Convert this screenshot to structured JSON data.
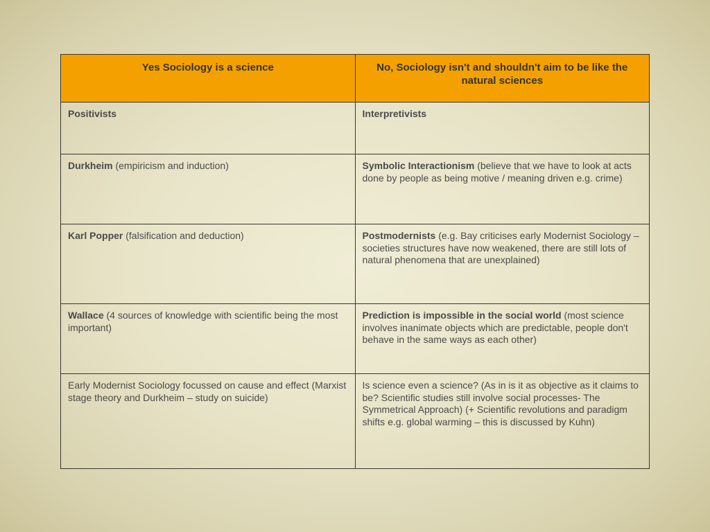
{
  "table": {
    "header_bg": "#f4a100",
    "border_color": "#39362f",
    "background_gradient": {
      "center": "#f0edd6",
      "mid": "#e8e4c8",
      "outer": "#d9d3b0",
      "edge": "#cbc49a"
    },
    "font_family": "Arial",
    "header_fontsize_pt": 11,
    "body_fontsize_pt": 10,
    "columns": [
      {
        "label": "Yes Sociology is a science",
        "width_pct": 50
      },
      {
        "label": "No, Sociology isn't and shouldn't aim to be like the natural sciences",
        "width_pct": 50
      }
    ],
    "rows": [
      {
        "left": {
          "bold": "Positivists",
          "rest": ""
        },
        "right": {
          "bold": "Interpretivists",
          "rest": ""
        }
      },
      {
        "left": {
          "bold": "Durkheim",
          "rest": " (empiricism and induction)"
        },
        "right": {
          "bold": "Symbolic Interactionism",
          "rest": " (believe that we have to look at acts done by people as being motive / meaning driven e.g. crime)"
        }
      },
      {
        "left": {
          "bold": "Karl Popper",
          "rest": " (falsification and deduction)"
        },
        "right": {
          "bold": "Postmodernists",
          "rest": " (e.g. Bay criticises early Modernist Sociology – societies structures have now weakened, there are still lots of natural phenomena that are unexplained)"
        }
      },
      {
        "left": {
          "bold": "Wallace",
          "rest": " (4 sources of knowledge with scientific being the most important)"
        },
        "right": {
          "bold": "Prediction is impossible in the social world",
          "rest": " (most science involves inanimate objects which are predictable, people don't behave in the same ways as each other)"
        }
      },
      {
        "left": {
          "bold": "",
          "rest": "Early Modernist Sociology focussed on cause and effect (Marxist stage theory and Durkheim – study on suicide)"
        },
        "right": {
          "bold": "",
          "rest": "Is science even a science?  (As in is it as objective as it claims to be? Scientific studies still involve social processes- The Symmetrical Approach) (+ Scientific revolutions and paradigm shifts e.g. global warming – this is discussed by Kuhn)"
        }
      }
    ]
  }
}
